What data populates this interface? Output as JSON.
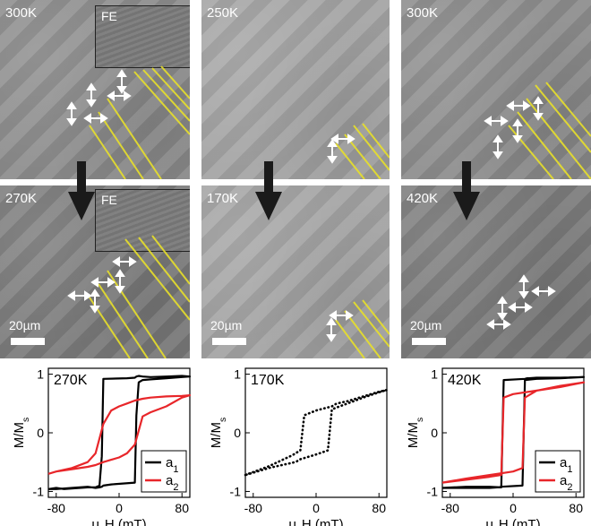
{
  "panels": [
    {
      "label": "300K",
      "inset": "FE"
    },
    {
      "label": "270K",
      "inset": "FE",
      "scale": "20µm"
    },
    {
      "label": "250K"
    },
    {
      "label": "170K",
      "scale": "20µm"
    },
    {
      "label": "300K"
    },
    {
      "label": "420K",
      "scale": "20µm"
    }
  ],
  "colors": {
    "a1": "#000000",
    "a2": "#e8262a",
    "stripe": "#e8e02a"
  },
  "chart_data": [
    {
      "type": "line",
      "annotation": "270K",
      "xlabel": "μ0H (mT)",
      "ylabel": "M/Ms",
      "xlim": [
        -90,
        90
      ],
      "ylim": [
        -1.1,
        1.1
      ],
      "xticks": [
        -80,
        0,
        80
      ],
      "yticks": [
        -1,
        0,
        1
      ],
      "legend": "bottom-right",
      "series": [
        {
          "name": "a1",
          "color": "#000000",
          "style": "solid",
          "x": [
            -90,
            -80,
            -70,
            -60,
            -50,
            -40,
            -30,
            -25,
            -22,
            -20,
            10,
            20,
            22,
            25,
            30,
            40,
            60,
            80,
            90,
            80,
            60,
            40,
            30,
            25,
            22,
            20,
            -10,
            -20,
            -22,
            -25,
            -30,
            -40,
            -60,
            -80,
            -90
          ],
          "y": [
            -0.96,
            -0.94,
            -0.96,
            -0.95,
            -0.94,
            -0.93,
            -0.93,
            -0.9,
            -0.4,
            0.92,
            0.93,
            0.94,
            0.96,
            0.97,
            0.96,
            0.95,
            0.96,
            0.97,
            0.96,
            0.95,
            0.93,
            0.91,
            0.9,
            0.86,
            0.3,
            -0.85,
            -0.88,
            -0.9,
            -0.92,
            -0.93,
            -0.94,
            -0.92,
            -0.94,
            -0.96,
            -0.96
          ]
        },
        {
          "name": "a2",
          "color": "#e8262a",
          "style": "solid",
          "x": [
            -90,
            -80,
            -60,
            -40,
            -30,
            -20,
            -10,
            0,
            10,
            20,
            30,
            40,
            60,
            80,
            90,
            80,
            60,
            40,
            30,
            20,
            10,
            0,
            -10,
            -20,
            -30,
            -40,
            -60,
            -80,
            -90
          ],
          "y": [
            -0.7,
            -0.66,
            -0.6,
            -0.5,
            -0.35,
            0.15,
            0.38,
            0.45,
            0.5,
            0.55,
            0.58,
            0.6,
            0.62,
            0.63,
            0.64,
            0.6,
            0.45,
            0.35,
            0.28,
            -0.2,
            -0.35,
            -0.42,
            -0.46,
            -0.5,
            -0.55,
            -0.58,
            -0.62,
            -0.66,
            -0.7
          ]
        }
      ]
    },
    {
      "type": "line",
      "annotation": "170K",
      "xlabel": "μ0H (mT)",
      "ylabel": "M/Ms",
      "xlim": [
        -90,
        90
      ],
      "ylim": [
        -1.1,
        1.1
      ],
      "xticks": [
        -80,
        0,
        80
      ],
      "yticks": [
        -1,
        0,
        1
      ],
      "series": [
        {
          "color": "#000000",
          "style": "dotted",
          "x": [
            -90,
            -60,
            -30,
            -20,
            -15,
            0,
            20,
            25,
            30,
            40,
            60,
            80,
            90,
            80,
            60,
            30,
            20,
            15,
            0,
            -20,
            -25,
            -30,
            -40,
            -60,
            -80,
            -90
          ],
          "y": [
            -0.72,
            -0.57,
            -0.38,
            -0.3,
            0.3,
            0.38,
            0.45,
            0.49,
            0.51,
            0.54,
            0.62,
            0.7,
            0.73,
            0.69,
            0.6,
            0.45,
            0.4,
            -0.3,
            -0.37,
            -0.45,
            -0.49,
            -0.51,
            -0.54,
            -0.6,
            -0.68,
            -0.72
          ]
        }
      ]
    },
    {
      "type": "line",
      "annotation": "420K",
      "xlabel": "μ0H (mT)",
      "ylabel": "M/Ms",
      "xlim": [
        -90,
        90
      ],
      "ylim": [
        -1.1,
        1.1
      ],
      "xticks": [
        -80,
        0,
        80
      ],
      "yticks": [
        -1,
        0,
        1
      ],
      "legend": "bottom-right",
      "series": [
        {
          "name": "a1",
          "color": "#000000",
          "style": "solid",
          "x": [
            -90,
            -60,
            -30,
            -15,
            -12,
            15,
            18,
            20,
            30,
            60,
            90,
            60,
            30,
            15,
            12,
            -15,
            -18,
            -20,
            -30,
            -60,
            -90
          ],
          "y": [
            -0.94,
            -0.92,
            -0.92,
            -0.93,
            0.9,
            0.92,
            0.93,
            0.93,
            0.94,
            0.94,
            0.95,
            0.93,
            0.92,
            0.9,
            -0.9,
            -0.92,
            -0.93,
            -0.93,
            -0.94,
            -0.94,
            -0.94
          ]
        },
        {
          "name": "a2",
          "color": "#e8262a",
          "style": "solid",
          "x": [
            -90,
            -60,
            -30,
            -15,
            -12,
            0,
            30,
            60,
            90,
            60,
            30,
            15,
            12,
            0,
            -30,
            -60,
            -90
          ],
          "y": [
            -0.85,
            -0.8,
            -0.75,
            -0.72,
            0.6,
            0.66,
            0.72,
            0.78,
            0.86,
            0.8,
            0.72,
            0.6,
            -0.6,
            -0.66,
            -0.72,
            -0.78,
            -0.85
          ]
        }
      ]
    }
  ]
}
